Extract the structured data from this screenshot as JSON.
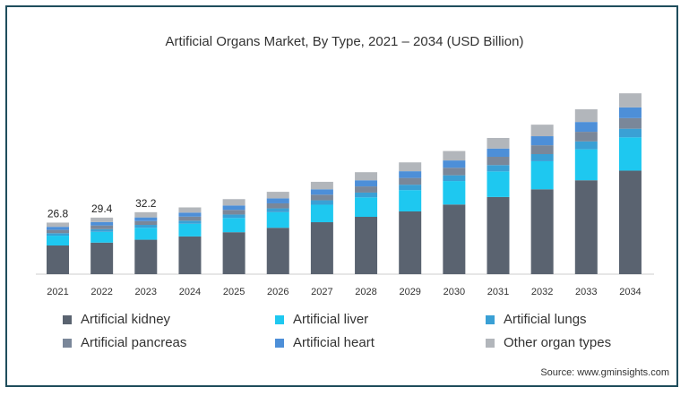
{
  "chart_data": {
    "type": "bar",
    "stacked": true,
    "title": "Artificial Organs Market, By Type, 2021 – 2034 (USD Billion)",
    "source": "Source: www.gminsights.com",
    "categories": [
      "2021",
      "2022",
      "2023",
      "2024",
      "2025",
      "2026",
      "2027",
      "2028",
      "2029",
      "2030",
      "2031",
      "2032",
      "2033",
      "2034"
    ],
    "totals_labels": [
      "26.8",
      "29.4",
      "32.2"
    ],
    "ylim": [
      0,
      95
    ],
    "grid": false,
    "legend_position": "bottom",
    "series": [
      {
        "name": "Artificial kidney",
        "color": "#5a6370",
        "values": [
          14.9,
          16.4,
          17.9,
          19.6,
          21.8,
          24.1,
          27.0,
          29.8,
          32.6,
          36.2,
          40.1,
          44.1,
          48.8,
          53.8
        ]
      },
      {
        "name": "Artificial liver",
        "color": "#1ec8f0",
        "values": [
          5.1,
          5.6,
          6.2,
          6.6,
          7.4,
          8.1,
          9.1,
          10.1,
          11.1,
          12.2,
          13.3,
          14.6,
          16.1,
          17.3
        ]
      },
      {
        "name": "Artificial lungs",
        "color": "#3aa0d5",
        "values": [
          1.3,
          1.4,
          1.5,
          1.6,
          1.8,
          2.0,
          2.3,
          2.5,
          2.8,
          3.0,
          3.3,
          3.7,
          4.1,
          4.5
        ]
      },
      {
        "name": "Artificial pancreas",
        "color": "#7a8799",
        "values": [
          1.7,
          1.9,
          2.0,
          2.1,
          2.4,
          2.6,
          2.9,
          3.2,
          3.5,
          3.9,
          4.3,
          4.6,
          5.0,
          5.5
        ]
      },
      {
        "name": "Artificial heart",
        "color": "#4d8fd8",
        "values": [
          1.6,
          1.8,
          1.9,
          2.1,
          2.3,
          2.6,
          2.8,
          3.2,
          3.5,
          3.8,
          4.3,
          4.7,
          5.1,
          5.6
        ]
      },
      {
        "name": "Other organ types",
        "color": "#b2b6bb",
        "values": [
          2.2,
          2.3,
          2.7,
          2.7,
          3.3,
          3.4,
          3.9,
          4.2,
          4.6,
          4.9,
          5.5,
          6.0,
          6.6,
          7.3
        ]
      }
    ]
  }
}
